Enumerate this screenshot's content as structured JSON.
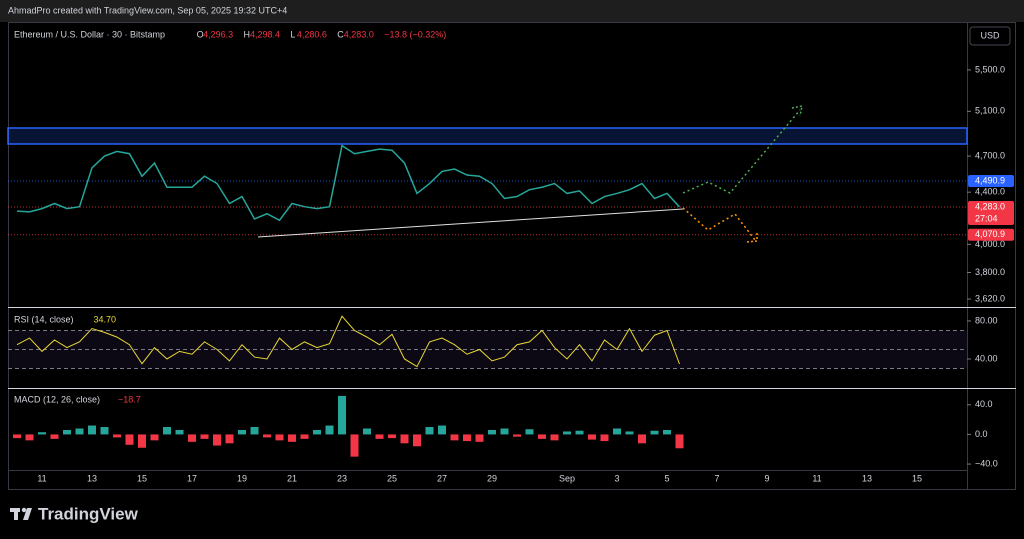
{
  "header": {
    "credit": "AhmadPro created with TradingView.com, Sep 05, 2025 19:32 UTC+4",
    "currency": "USD"
  },
  "legend": {
    "symbol": "Ethereum / U.S. Dollar · 30 · Bitstamp",
    "ohlc": [
      {
        "key": "O",
        "value": "4,296.3"
      },
      {
        "key": "H",
        "value": "4,298.4"
      },
      {
        "key": "L",
        "value": "4,280.6"
      },
      {
        "key": "C",
        "value": "4,283.0"
      }
    ],
    "change": "−13.8 (−0.32%)"
  },
  "price_tags": [
    {
      "value": 4490.9,
      "label": "4,490.9",
      "color": "#2962ff"
    },
    {
      "value": 4283.0,
      "label": "4,283.0",
      "color": "#f23645",
      "countdown": "27:04"
    },
    {
      "value": 4070.9,
      "label": "4,070.9",
      "color": "#f23645"
    }
  ],
  "footer": {
    "brand": "TradingView"
  },
  "chart_data": [
    {
      "type": "line",
      "color": "#26a69a",
      "log_scale": true,
      "categories": [
        null,
        null,
        "11",
        null,
        null,
        null,
        "13",
        null,
        null,
        null,
        "15",
        null,
        null,
        null,
        "17",
        null,
        null,
        null,
        "19",
        null,
        null,
        null,
        "21",
        null,
        null,
        null,
        "23",
        null,
        null,
        null,
        "25",
        null,
        null,
        null,
        "27",
        null,
        null,
        null,
        "29",
        null,
        null,
        null,
        null,
        null,
        "Sep",
        null,
        null,
        null,
        "3",
        null,
        null,
        null,
        "5",
        null,
        null,
        null,
        "7",
        null,
        null,
        null,
        "9",
        null,
        null,
        null,
        "11",
        null,
        null,
        null,
        "13",
        null,
        null,
        null,
        "15",
        null,
        null,
        null
      ],
      "values": [
        4250,
        4245,
        4270,
        4310,
        4270,
        4285,
        4600,
        4700,
        4740,
        4720,
        4530,
        4640,
        4440,
        4440,
        4440,
        4530,
        4470,
        4310,
        4365,
        4190,
        4230,
        4180,
        4310,
        4285,
        4270,
        4285,
        4790,
        4720,
        4740,
        4760,
        4750,
        4640,
        4390,
        4470,
        4570,
        4590,
        4540,
        4530,
        4470,
        4350,
        4365,
        4420,
        4440,
        4470,
        4390,
        4410,
        4310,
        4365,
        4390,
        4420,
        4470,
        4350,
        4390,
        4283,
        null,
        null,
        null,
        null,
        null,
        null,
        null,
        null,
        null,
        null,
        null,
        null,
        null,
        null,
        null,
        null,
        null,
        null,
        null,
        null,
        null,
        null
      ],
      "ylim": [
        3568,
        5981
      ],
      "yticks": [
        {
          "value": 5500,
          "label": "5,500.0"
        },
        {
          "value": 5100,
          "label": "5,100.0"
        },
        {
          "value": 4700,
          "label": "4,700.0"
        },
        {
          "value": 4400,
          "label": "4,400.0"
        },
        {
          "value": 4000,
          "label": "4,000.0"
        },
        {
          "value": 3800,
          "label": "3,800.0"
        },
        {
          "value": 3620,
          "label": "3,620.0"
        }
      ]
    },
    {
      "type": "line",
      "title": "RSI (14, close)",
      "last": "34.70",
      "color": "#e8d834",
      "levels": [
        70,
        50,
        30
      ],
      "values": [
        55,
        62,
        48,
        60,
        52,
        58,
        72,
        68,
        63,
        55,
        35,
        52,
        40,
        48,
        45,
        58,
        50,
        38,
        55,
        42,
        40,
        62,
        50,
        58,
        52,
        56,
        85,
        70,
        63,
        55,
        66,
        40,
        32,
        58,
        62,
        55,
        45,
        50,
        38,
        42,
        55,
        58,
        70,
        52,
        40,
        55,
        38,
        60,
        50,
        72,
        48,
        65,
        70,
        34.7,
        null,
        null,
        null,
        null,
        null,
        null,
        null,
        null,
        null,
        null,
        null,
        null,
        null,
        null,
        null,
        null,
        null,
        null,
        null,
        null,
        null,
        null
      ],
      "ylim": [
        10.5,
        92.6
      ],
      "yticks": [
        {
          "value": 80,
          "label": "80.00"
        },
        {
          "value": 40,
          "label": "40.00"
        }
      ]
    },
    {
      "type": "bar",
      "title": "MACD (12, 26, close)",
      "last": "−18.7",
      "color": "#26a69a",
      "negative_color": "#f23645",
      "values": [
        -5,
        -8,
        3,
        -6,
        6,
        8,
        12,
        10,
        -4,
        -14,
        -18,
        -8,
        10,
        6,
        -10,
        -6,
        -15,
        -12,
        6,
        10,
        -4,
        -8,
        -10,
        -6,
        6,
        12,
        52,
        -30,
        8,
        -6,
        -5,
        -12,
        -16,
        10,
        12,
        -8,
        -9,
        -10,
        6,
        8,
        -3,
        7,
        -6,
        -8,
        4,
        5,
        -7,
        -9,
        8,
        4,
        -12,
        5,
        6,
        -18.7,
        null,
        null,
        null,
        null,
        null,
        null,
        null,
        null,
        null,
        null,
        null,
        null,
        null,
        null,
        null,
        null,
        null,
        null,
        null,
        null,
        null,
        null
      ],
      "ylim": [
        -48,
        61.3
      ],
      "yticks": [
        {
          "value": 40,
          "label": "40.0"
        },
        {
          "value": 0,
          "label": "0.0"
        },
        {
          "value": -40,
          "label": "−40.0"
        }
      ]
    }
  ]
}
